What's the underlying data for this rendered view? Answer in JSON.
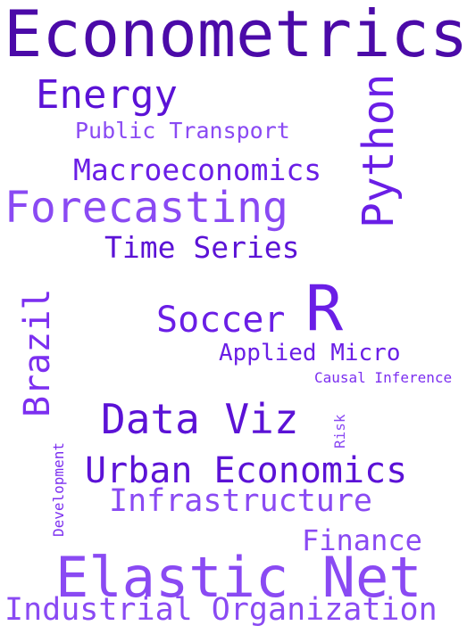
{
  "word_cloud": {
    "words": [
      {
        "text": "Econometrics",
        "color": "#4b0aa8"
      },
      {
        "text": "Energy",
        "color": "#5b12d6"
      },
      {
        "text": "Python",
        "color": "#6a1ee6"
      },
      {
        "text": "Public Transport",
        "color": "#8a4af3"
      },
      {
        "text": "Macroeconomics",
        "color": "#6a1ee6"
      },
      {
        "text": "Forecasting",
        "color": "#8a4af3"
      },
      {
        "text": "Time Series",
        "color": "#5b12d6"
      },
      {
        "text": "R",
        "color": "#6a1ee6"
      },
      {
        "text": "Soccer",
        "color": "#6a1ee6"
      },
      {
        "text": "Brazil",
        "color": "#7c2ff0"
      },
      {
        "text": "Applied Micro",
        "color": "#6a1ee6"
      },
      {
        "text": "Causal Inference",
        "color": "#7c2ff0"
      },
      {
        "text": "Data Viz",
        "color": "#5b12d6"
      },
      {
        "text": "Risk",
        "color": "#8a4af3"
      },
      {
        "text": "Development",
        "color": "#7c2ff0"
      },
      {
        "text": "Urban Economics",
        "color": "#5b12d6"
      },
      {
        "text": "Infrastructure",
        "color": "#8a4af3"
      },
      {
        "text": "Finance",
        "color": "#8a4af3"
      },
      {
        "text": "Elastic Net",
        "color": "#8a4af3"
      },
      {
        "text": "Industrial Organization",
        "color": "#8a4af3"
      }
    ]
  }
}
